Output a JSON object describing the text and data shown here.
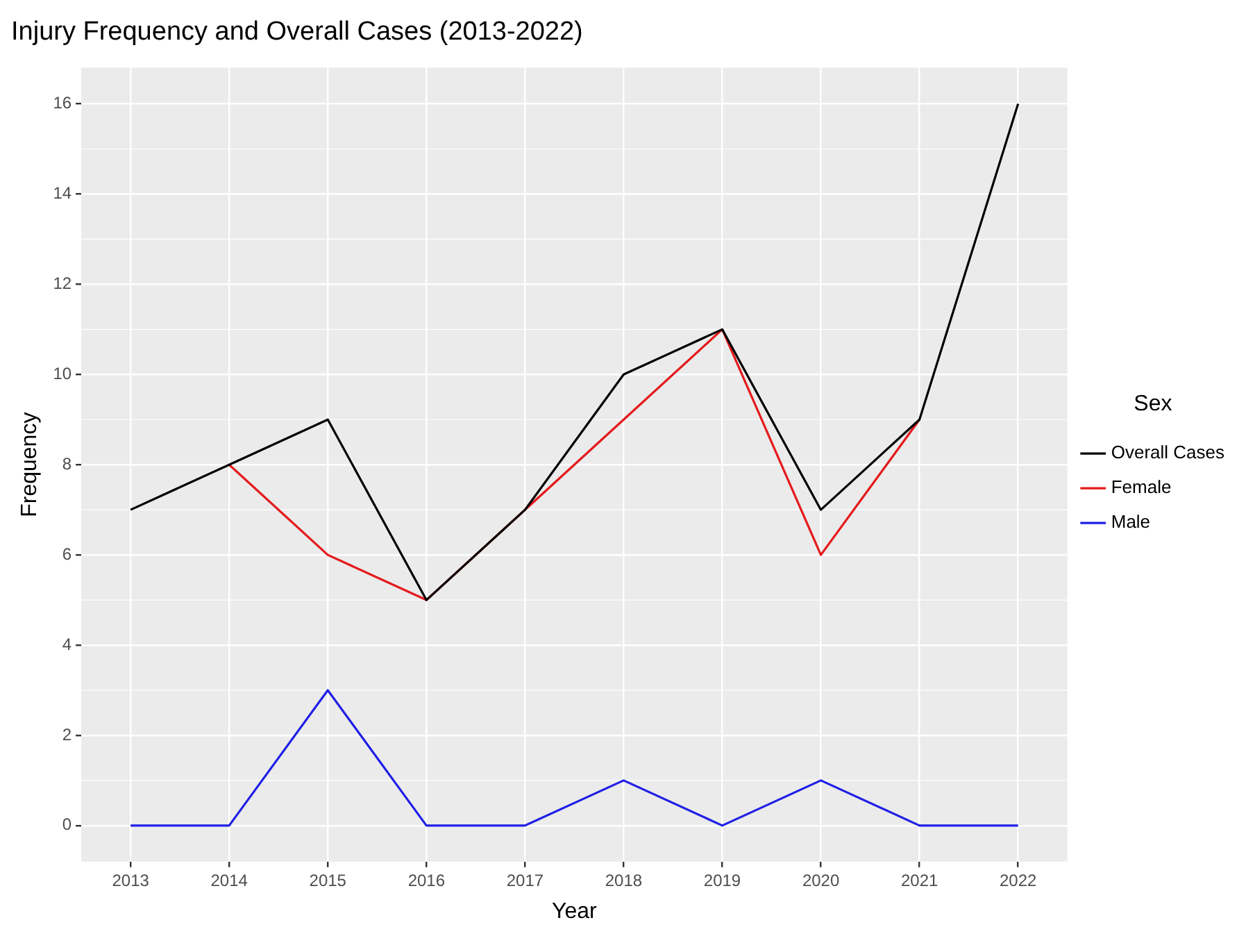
{
  "chart_data": {
    "type": "line",
    "title": "Injury Frequency and Overall Cases (2013-2022)",
    "xlabel": "Year",
    "ylabel": "Frequency",
    "legend_title": "Sex",
    "categories": [
      "2013",
      "2014",
      "2015",
      "2016",
      "2017",
      "2018",
      "2019",
      "2020",
      "2021",
      "2022"
    ],
    "series": [
      {
        "name": "Overall Cases",
        "color": "#000000",
        "values": [
          7,
          8,
          9,
          5,
          7,
          10,
          11,
          7,
          9,
          16
        ]
      },
      {
        "name": "Female",
        "color": "#e41a1c",
        "values": [
          null,
          8,
          6,
          5,
          7,
          9,
          11,
          6,
          9,
          null
        ]
      },
      {
        "name": "Male",
        "color": "#1f1fe6",
        "values": [
          0,
          0,
          3,
          0,
          0,
          1,
          0,
          1,
          0,
          0
        ]
      }
    ],
    "ylim": [
      -0.8,
      16.8
    ],
    "yticks": [
      0,
      2,
      4,
      6,
      8,
      10,
      12,
      14,
      16
    ],
    "grid": true,
    "legend": "right",
    "marker": "none",
    "line_style": "solid"
  }
}
